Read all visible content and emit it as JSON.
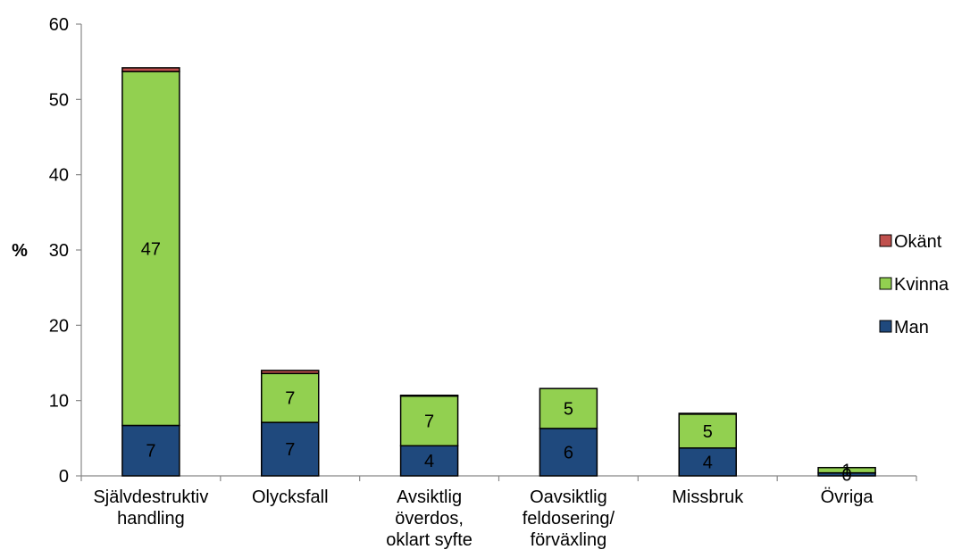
{
  "chart_data": {
    "type": "bar",
    "stacked": true,
    "title": "",
    "xlabel": "",
    "ylabel": "%",
    "ylim": [
      0,
      60
    ],
    "yticks": [
      0,
      10,
      20,
      30,
      40,
      50,
      60
    ],
    "grid": false,
    "legend_position": "right",
    "categories": [
      [
        "Självdestruktiv",
        "handling"
      ],
      [
        "Olycksfall"
      ],
      [
        "Avsiktlig",
        "överdos,",
        "oklart syfte"
      ],
      [
        "Oavsiktlig",
        "feldosering/",
        "förväxling"
      ],
      [
        "Missbruk"
      ],
      [
        "Övriga"
      ]
    ],
    "series": [
      {
        "name": "Man",
        "color": "#1f497d",
        "values": [
          6.7,
          7.1,
          4.0,
          6.3,
          3.7,
          0.4
        ],
        "labels": [
          "7",
          "7",
          "4",
          "6",
          "4",
          "0"
        ]
      },
      {
        "name": "Kvinna",
        "color": "#92d050",
        "values": [
          47.0,
          6.5,
          6.6,
          5.3,
          4.5,
          0.7
        ],
        "labels": [
          "47",
          "7",
          "7",
          "5",
          "5",
          "1"
        ]
      },
      {
        "name": "Okänt",
        "color": "#c0504d",
        "values": [
          0.5,
          0.4,
          0.1,
          0.0,
          0.1,
          0.0
        ],
        "labels": []
      }
    ]
  }
}
